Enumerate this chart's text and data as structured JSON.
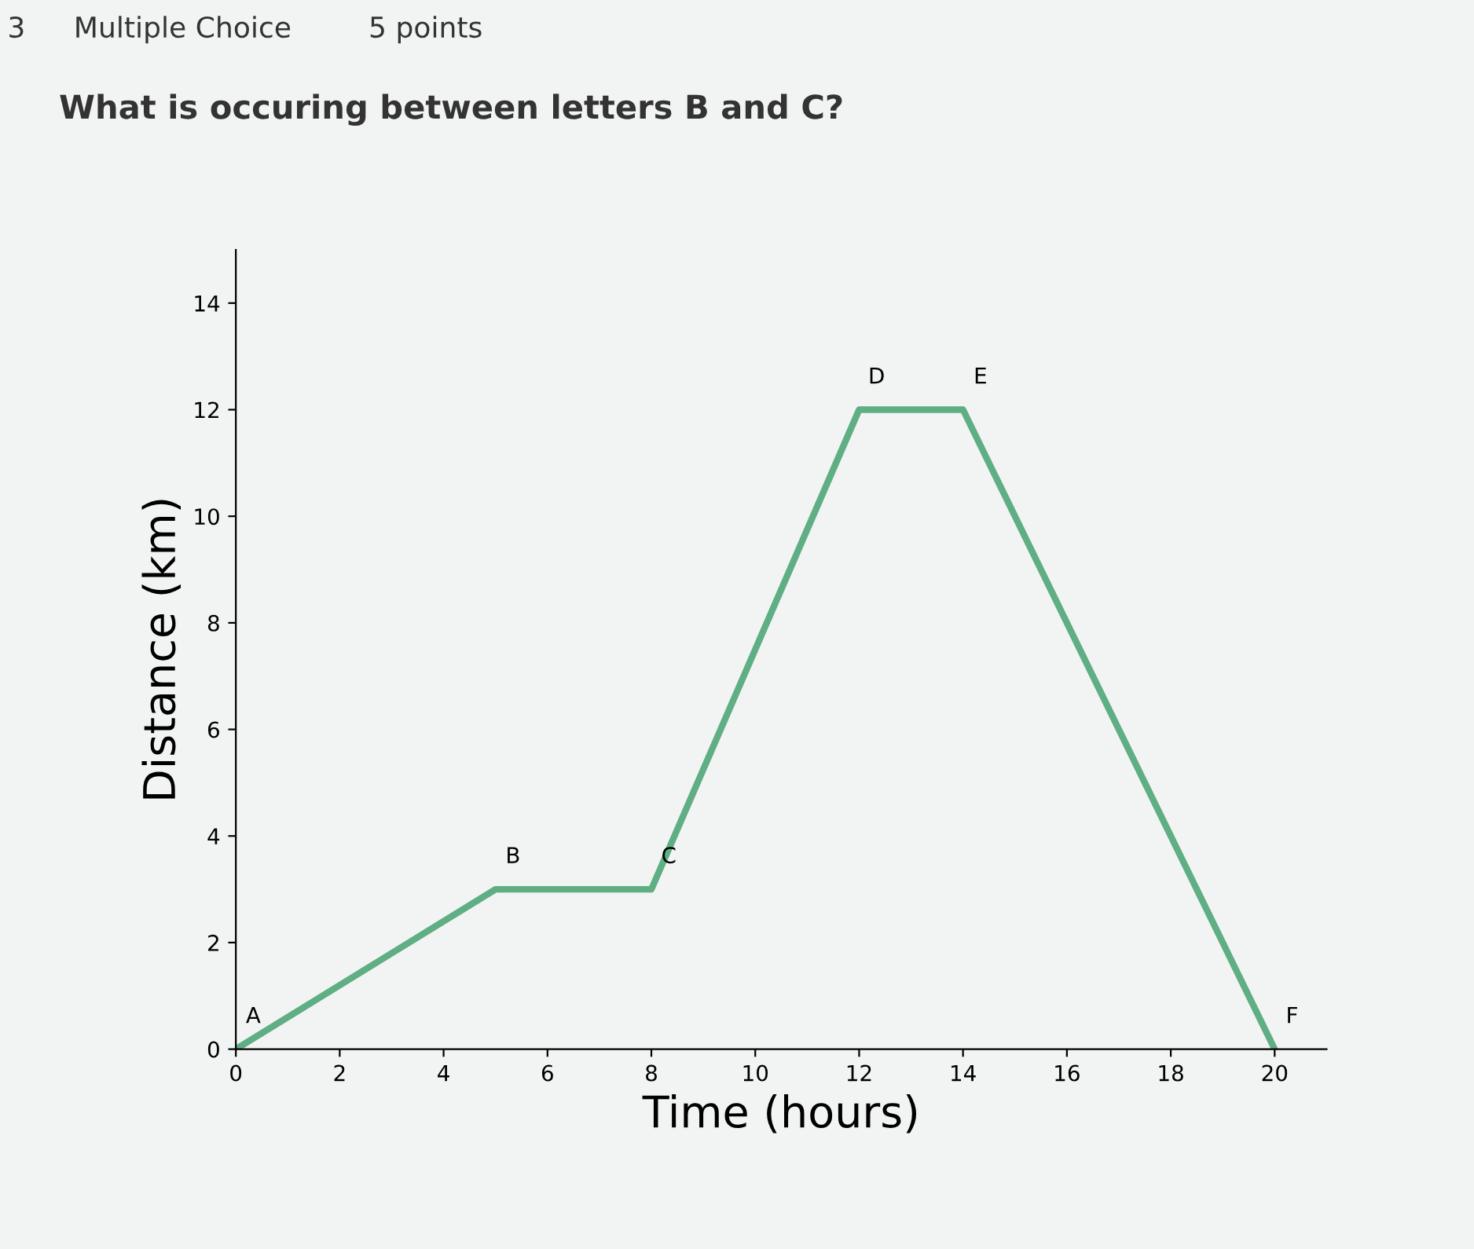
{
  "chart_data": {
    "type": "line",
    "title": "What is occuring between letters B and C?",
    "xlabel": "Time (hours)",
    "ylabel": "Distance (km)",
    "x": [
      0,
      5,
      8,
      12,
      14,
      20
    ],
    "series": [
      {
        "color": "#5fae84",
        "values": [
          0,
          3,
          3,
          12,
          12,
          0
        ]
      }
    ],
    "xlim": [
      0,
      21
    ],
    "ylim": [
      0,
      15
    ],
    "xticks": [
      0,
      2,
      4,
      6,
      8,
      10,
      12,
      14,
      16,
      18,
      20
    ],
    "yticks": [
      0,
      2,
      4,
      6,
      8,
      10,
      12,
      14
    ],
    "grid": false,
    "legend": false,
    "marker": "none",
    "line_style": "solid",
    "annotations": [
      "3",
      "Multiple Choice",
      "5 points",
      {
        "text": "A",
        "x": 0,
        "y": 0
      },
      {
        "text": "B",
        "x": 5,
        "y": 3
      },
      {
        "text": "C",
        "x": 8,
        "y": 3
      },
      {
        "text": "D",
        "x": 12,
        "y": 12
      },
      {
        "text": "E",
        "x": 14,
        "y": 12
      },
      {
        "text": "F",
        "x": 20,
        "y": 0
      }
    ]
  }
}
